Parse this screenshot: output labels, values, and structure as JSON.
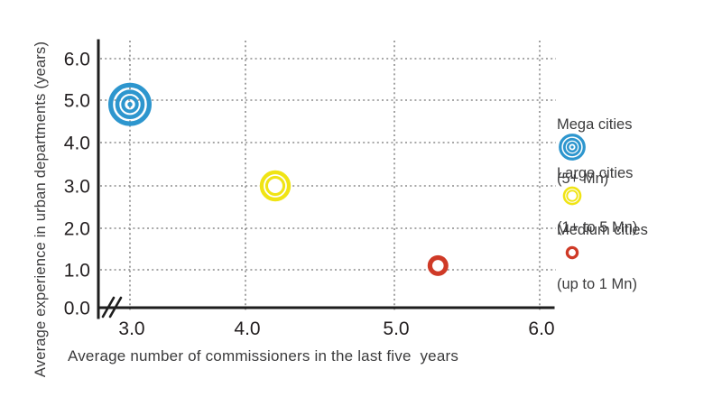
{
  "chart_data": {
    "type": "scatter",
    "title": "",
    "xlabel": "Average number of commissioners in the last five  years",
    "ylabel": "Average experience in urban departments (years)",
    "x_tick_values": [
      3,
      4,
      5,
      6
    ],
    "x_tick_labels": [
      "3.0",
      "4.0",
      "5.0",
      "6.0"
    ],
    "y_tick_values": [
      0,
      1,
      2,
      3,
      4,
      5,
      6
    ],
    "y_tick_labels": [
      "0.0",
      "1.0",
      "2.0",
      "3.0",
      "4.0",
      "5.0",
      "6.0"
    ],
    "xlim": [
      2.8,
      6.1
    ],
    "ylim": [
      0,
      6.6
    ],
    "grid": "dotted",
    "x_axis_break": true,
    "legend_position": "right",
    "series": [
      {
        "name": "Mega cities",
        "range": "(5+ Mn)",
        "x": 3.0,
        "y": 4.9,
        "marker": "bullseye",
        "color": "#2D96CE"
      },
      {
        "name": "Large cities",
        "range": "(1+ to 5 Mn)",
        "x": 4.2,
        "y": 3.0,
        "marker": "double-ring",
        "color": "#F0E414"
      },
      {
        "name": "Medium cities",
        "range": "(up to 1 Mn)",
        "x": 5.3,
        "y": 1.1,
        "marker": "ring",
        "color": "#CF3A27"
      }
    ]
  },
  "colors": {
    "background": "#FFFFFF",
    "axis": "#1E1E1E",
    "grid": "#8C8C8C",
    "tick_text": "#231F20",
    "label_text": "#3B3B3C"
  }
}
